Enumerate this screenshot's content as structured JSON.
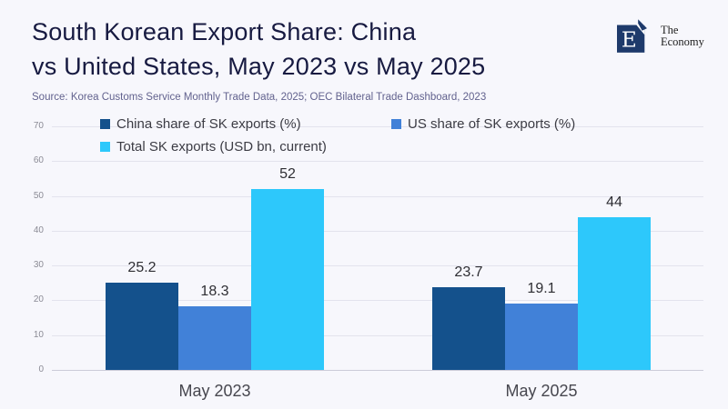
{
  "header": {
    "title_line1": "South Korean Export Share: China",
    "title_line2": "vs United States, May 2023 vs May 2025",
    "source": "Source: Korea Customs Service Monthly Trade Data, 2025; OEC Bilateral Trade Dashboard, 2023",
    "logo": {
      "letter": "E",
      "name_line1": "The",
      "name_line2": "Economy"
    }
  },
  "colors": {
    "china": "#14518c",
    "us": "#4181d8",
    "total": "#2dc8fb",
    "background": "#f7f7fc",
    "logo_navy": "#1e3a6b"
  },
  "chart_data": {
    "type": "bar",
    "categories": [
      "May 2023",
      "May 2025"
    ],
    "series": [
      {
        "key": "china-share",
        "name": "China share of SK exports (%)",
        "color_key": "china",
        "values": [
          25.2,
          23.7
        ]
      },
      {
        "key": "us-share",
        "name": "US share of SK exports (%)",
        "color_key": "us",
        "values": [
          18.3,
          19.1
        ]
      },
      {
        "key": "total-exports",
        "name": "Total SK exports (USD bn, current)",
        "color_key": "total",
        "values": [
          52,
          44
        ]
      }
    ],
    "ylim": [
      0,
      70
    ],
    "yticks": [
      0,
      10,
      20,
      30,
      40,
      50,
      60,
      70
    ],
    "grid": true,
    "value_labels": true,
    "legend_position": "top-left"
  }
}
